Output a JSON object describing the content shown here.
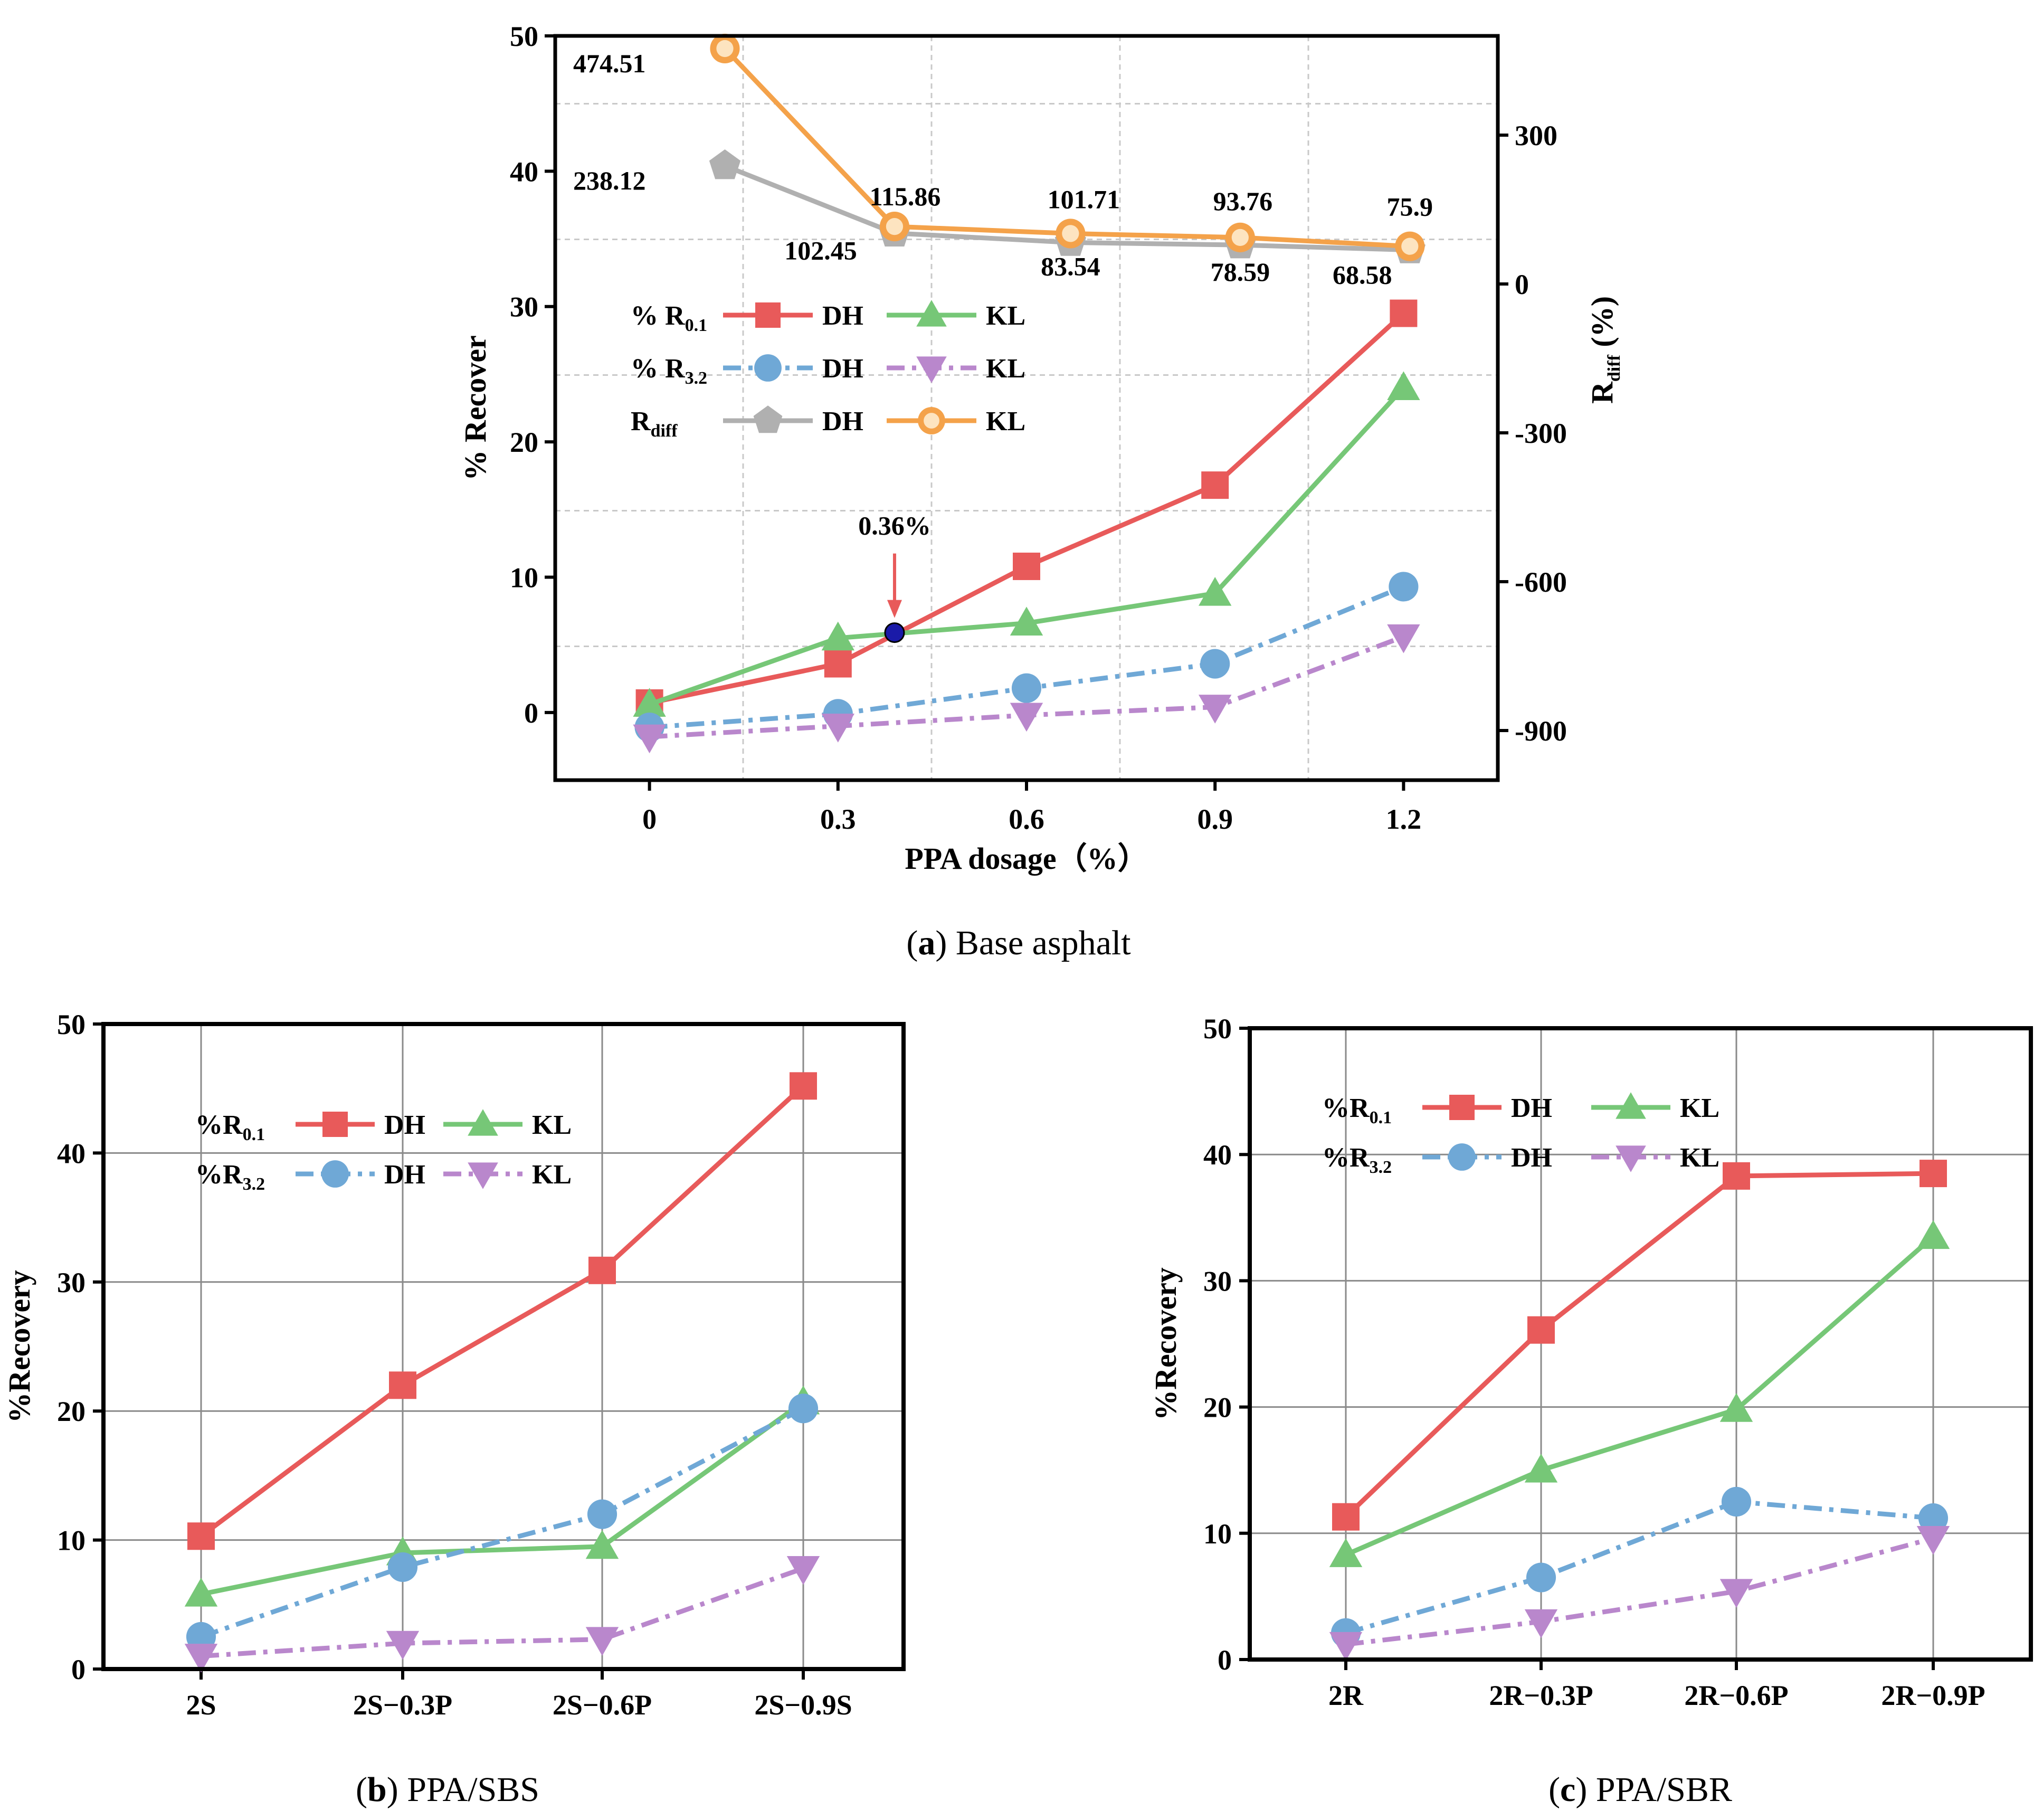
{
  "chart_data": [
    {
      "id": "a",
      "type": "line",
      "caption": {
        "letter": "a",
        "text": "Base asphalt"
      },
      "xlabel": "PPA dosage（%）",
      "ylabel": "% Recover",
      "y2label": "R",
      "y2label_sub": "diff",
      "y2label_unit": " (%)",
      "x_ticks": [
        "0",
        "0.3",
        "0.6",
        "0.9",
        "1.2"
      ],
      "x_tick_values": [
        0,
        0.3,
        0.6,
        0.9,
        1.2
      ],
      "xlim": [
        -0.15,
        1.35
      ],
      "ylim": [
        -5,
        50
      ],
      "y_ticks": [
        "0",
        "10",
        "20",
        "30",
        "40",
        "50"
      ],
      "y2lim": [
        -1000,
        500
      ],
      "y2_ticks": [
        "-900",
        "-600",
        "-300",
        "0",
        "300"
      ],
      "series": [
        {
          "name": "% R0.1 DH",
          "axis": "left",
          "color": "#e85a5a",
          "marker": "square",
          "dash": "solid",
          "x": [
            0,
            0.3,
            0.6,
            0.9,
            1.2
          ],
          "values": [
            0.7,
            3.6,
            10.8,
            16.8,
            29.5
          ]
        },
        {
          "name": "% R0.1 KL",
          "axis": "left",
          "color": "#76c777",
          "marker": "triangle-up",
          "dash": "solid",
          "x": [
            0,
            0.3,
            0.6,
            0.9,
            1.2
          ],
          "values": [
            0.6,
            5.5,
            6.6,
            8.8,
            24.0
          ]
        },
        {
          "name": "% R3.2 DH",
          "axis": "left",
          "color": "#6fa8d6",
          "marker": "circle",
          "dash": "dashdot",
          "x": [
            0,
            0.3,
            0.6,
            0.9,
            1.2
          ],
          "values": [
            -1.1,
            -0.1,
            1.8,
            3.6,
            9.3
          ]
        },
        {
          "name": "% R3.2 KL",
          "axis": "left",
          "color": "#b987cc",
          "marker": "triangle-down",
          "dash": "dashdot",
          "x": [
            0,
            0.3,
            0.6,
            0.9,
            1.2
          ],
          "values": [
            -1.8,
            -1.0,
            -0.2,
            0.4,
            5.6
          ]
        },
        {
          "name": "Rdiff DH",
          "axis": "right",
          "color": "#b0b0b0",
          "marker": "pentagon",
          "dash": "solid",
          "x": [
            0.12,
            0.39,
            0.67,
            0.94,
            1.21
          ],
          "values": [
            238.12,
            102.45,
            83.54,
            78.59,
            68.58
          ]
        },
        {
          "name": "Rdiff KL",
          "axis": "right",
          "color": "#f4a24a",
          "marker": "circle-hl",
          "dash": "solid",
          "x": [
            0.12,
            0.39,
            0.67,
            0.94,
            1.21
          ],
          "values": [
            474.51,
            115.86,
            101.71,
            93.76,
            75.9
          ]
        }
      ],
      "data_labels": {
        "kl": [
          "474.51",
          "115.86",
          "101.71",
          "93.76",
          "75.9"
        ],
        "dh": [
          "238.12",
          "102.45",
          "83.54",
          "78.59",
          "68.58"
        ]
      },
      "annotation": {
        "text": "0.36%",
        "x": 0.39,
        "y": 5.9,
        "color": "#e85a5a",
        "point_color": "#1a1aa8"
      },
      "legend": {
        "placement": "center-left",
        "rows": [
          {
            "label": "% R",
            "sub": "0.1",
            "entries": [
              "DH",
              "KL"
            ]
          },
          {
            "label": "% R",
            "sub": "3.2",
            "entries": [
              "DH",
              "KL"
            ]
          },
          {
            "label": "R",
            "sub": "diff",
            "entries": [
              "DH",
              "KL"
            ]
          }
        ]
      }
    },
    {
      "id": "b",
      "type": "line",
      "caption": {
        "letter": "b",
        "text": "PPA/SBS"
      },
      "xlabel": "",
      "ylabel": "%Recovery",
      "categories": [
        "2S",
        "2S−0.3P",
        "2S−0.6P",
        "2S−0.9S"
      ],
      "ylim": [
        0,
        50
      ],
      "y_ticks": [
        "0",
        "10",
        "20",
        "30",
        "40",
        "50"
      ],
      "series": [
        {
          "name": "%R0.1 DH",
          "color": "#e85a5a",
          "marker": "square",
          "dash": "solid",
          "values": [
            10.3,
            22.0,
            30.9,
            45.2
          ]
        },
        {
          "name": "%R0.1 KL",
          "color": "#76c777",
          "marker": "triangle-up",
          "dash": "solid",
          "values": [
            5.8,
            9.0,
            9.5,
            20.7
          ]
        },
        {
          "name": "%R3.2 DH",
          "color": "#6fa8d6",
          "marker": "circle",
          "dash": "dashdot",
          "values": [
            2.5,
            7.9,
            12.0,
            20.2
          ]
        },
        {
          "name": "%R3.2 KL",
          "color": "#b987cc",
          "marker": "triangle-down",
          "dash": "dashdot",
          "values": [
            1.0,
            2.0,
            2.3,
            7.8
          ]
        }
      ],
      "legend": {
        "placement": "top-left",
        "rows": [
          {
            "label": "%R",
            "sub": "0.1",
            "entries": [
              "DH",
              "KL"
            ]
          },
          {
            "label": "%R",
            "sub": "3.2",
            "entries": [
              "DH",
              "KL"
            ]
          }
        ]
      }
    },
    {
      "id": "c",
      "type": "line",
      "caption": {
        "letter": "c",
        "text": "PPA/SBR"
      },
      "xlabel": "",
      "ylabel": "%Recovery",
      "categories": [
        "2R",
        "2R−0.3P",
        "2R−0.6P",
        "2R−0.9P"
      ],
      "ylim": [
        0,
        50
      ],
      "y_ticks": [
        "0",
        "10",
        "20",
        "30",
        "40",
        "50"
      ],
      "series": [
        {
          "name": "%R0.1 DH",
          "color": "#e85a5a",
          "marker": "square",
          "dash": "solid",
          "values": [
            11.3,
            26.1,
            38.3,
            38.5
          ]
        },
        {
          "name": "%R0.1 KL",
          "color": "#76c777",
          "marker": "triangle-up",
          "dash": "solid",
          "values": [
            8.3,
            15.0,
            19.8,
            33.5
          ]
        },
        {
          "name": "%R3.2 DH",
          "color": "#6fa8d6",
          "marker": "circle",
          "dash": "dashdot",
          "values": [
            2.1,
            6.5,
            12.5,
            11.2
          ]
        },
        {
          "name": "%R3.2 KL",
          "color": "#b987cc",
          "marker": "triangle-down",
          "dash": "dashdot",
          "values": [
            1.2,
            3.0,
            5.4,
            9.6
          ]
        }
      ],
      "legend": {
        "placement": "top-left",
        "rows": [
          {
            "label": "%R",
            "sub": "0.1",
            "entries": [
              "DH",
              "KL"
            ]
          },
          {
            "label": "%R",
            "sub": "3.2",
            "entries": [
              "DH",
              "KL"
            ]
          }
        ]
      }
    }
  ]
}
